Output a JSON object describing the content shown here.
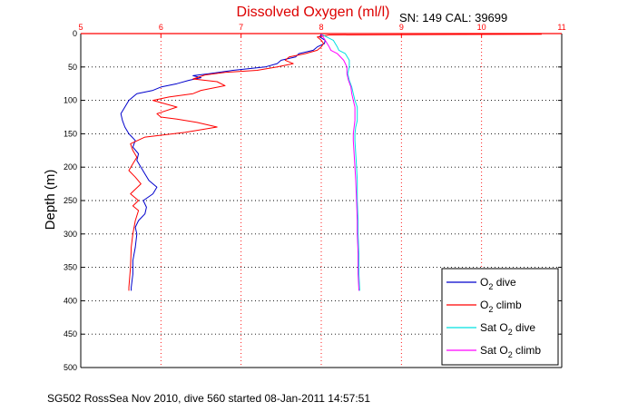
{
  "chart_data": {
    "type": "line",
    "title": "Dissolved Oxygen (ml/l)",
    "annotation": "SN: 149   CAL: 39699",
    "caption": "SG502 RossSea Nov 2010, dive 560 started 08-Jan-2011 14:57:51",
    "ylabel": "Depth (m)",
    "xlim": [
      5,
      11
    ],
    "ylim": [
      0,
      500
    ],
    "y_reversed": true,
    "x_axis_position": "top",
    "xticks": [
      "5",
      "6",
      "7",
      "8",
      "9",
      "10",
      "11"
    ],
    "yticks": [
      "0",
      "50",
      "100",
      "150",
      "200",
      "250",
      "300",
      "350",
      "400",
      "450",
      "500"
    ],
    "grid": true,
    "legend_position": "bottom-right",
    "colors": {
      "title": "#dd0000",
      "axis_top": "#ff0000",
      "grid": "#000000"
    },
    "series": [
      {
        "name": "O2 dive",
        "legend_base": "O",
        "legend_sub": "2",
        "legend_suffix": " dive",
        "color": "#0000cc",
        "points": [
          [
            8.0,
            1
          ],
          [
            7.98,
            5
          ],
          [
            8.05,
            10
          ],
          [
            8.04,
            15
          ],
          [
            7.95,
            20
          ],
          [
            7.9,
            25
          ],
          [
            7.72,
            30
          ],
          [
            7.68,
            35
          ],
          [
            7.5,
            40
          ],
          [
            7.45,
            45
          ],
          [
            7.3,
            50
          ],
          [
            6.9,
            55
          ],
          [
            6.6,
            60
          ],
          [
            6.4,
            63
          ],
          [
            6.5,
            66
          ],
          [
            6.35,
            70
          ],
          [
            6.2,
            75
          ],
          [
            6.0,
            80
          ],
          [
            5.9,
            85
          ],
          [
            5.7,
            90
          ],
          [
            5.65,
            95
          ],
          [
            5.6,
            100
          ],
          [
            5.55,
            110
          ],
          [
            5.5,
            120
          ],
          [
            5.52,
            130
          ],
          [
            5.55,
            140
          ],
          [
            5.6,
            150
          ],
          [
            5.68,
            160
          ],
          [
            5.65,
            170
          ],
          [
            5.72,
            180
          ],
          [
            5.7,
            190
          ],
          [
            5.75,
            200
          ],
          [
            5.8,
            210
          ],
          [
            5.85,
            220
          ],
          [
            5.95,
            230
          ],
          [
            5.9,
            240
          ],
          [
            5.78,
            250
          ],
          [
            5.82,
            260
          ],
          [
            5.8,
            270
          ],
          [
            5.72,
            280
          ],
          [
            5.68,
            290
          ],
          [
            5.7,
            300
          ],
          [
            5.68,
            320
          ],
          [
            5.65,
            340
          ],
          [
            5.65,
            360
          ],
          [
            5.63,
            380
          ],
          [
            5.63,
            385
          ]
        ]
      },
      {
        "name": "O2 climb",
        "legend_base": "O",
        "legend_sub": "2",
        "legend_suffix": " climb",
        "color": "#ff0000",
        "points": [
          [
            10.75,
            1
          ],
          [
            8.1,
            2
          ],
          [
            7.95,
            5
          ],
          [
            8.0,
            10
          ],
          [
            8.03,
            15
          ],
          [
            8.0,
            20
          ],
          [
            7.95,
            25
          ],
          [
            7.8,
            30
          ],
          [
            7.6,
            35
          ],
          [
            7.55,
            40
          ],
          [
            7.65,
            45
          ],
          [
            7.45,
            50
          ],
          [
            7.2,
            55
          ],
          [
            6.8,
            58
          ],
          [
            6.55,
            62
          ],
          [
            6.4,
            68
          ],
          [
            6.7,
            72
          ],
          [
            6.8,
            78
          ],
          [
            6.5,
            85
          ],
          [
            6.4,
            90
          ],
          [
            6.1,
            95
          ],
          [
            5.9,
            100
          ],
          [
            6.2,
            110
          ],
          [
            5.95,
            120
          ],
          [
            6.0,
            125
          ],
          [
            6.2,
            128
          ],
          [
            6.45,
            133
          ],
          [
            6.7,
            140
          ],
          [
            6.3,
            148
          ],
          [
            5.8,
            155
          ],
          [
            5.62,
            165
          ],
          [
            5.65,
            175
          ],
          [
            5.7,
            185
          ],
          [
            5.65,
            195
          ],
          [
            5.6,
            205
          ],
          [
            5.68,
            215
          ],
          [
            5.75,
            225
          ],
          [
            5.62,
            240
          ],
          [
            5.72,
            250
          ],
          [
            5.65,
            258
          ],
          [
            5.72,
            265
          ],
          [
            5.68,
            280
          ],
          [
            5.65,
            300
          ],
          [
            5.63,
            320
          ],
          [
            5.62,
            350
          ],
          [
            5.6,
            380
          ],
          [
            5.6,
            385
          ]
        ]
      },
      {
        "name": "Sat O2 dive",
        "legend_base": "Sat O",
        "legend_sub": "2",
        "legend_suffix": " dive",
        "color": "#00e0e0",
        "points": [
          [
            8.0,
            1
          ],
          [
            8.15,
            10
          ],
          [
            8.2,
            20
          ],
          [
            8.22,
            25
          ],
          [
            8.3,
            30
          ],
          [
            8.35,
            40
          ],
          [
            8.35,
            50
          ],
          [
            8.33,
            60
          ],
          [
            8.35,
            70
          ],
          [
            8.38,
            80
          ],
          [
            8.4,
            90
          ],
          [
            8.42,
            100
          ],
          [
            8.45,
            110
          ],
          [
            8.45,
            120
          ],
          [
            8.45,
            130
          ],
          [
            8.43,
            140
          ],
          [
            8.42,
            150
          ],
          [
            8.42,
            160
          ],
          [
            8.43,
            180
          ],
          [
            8.44,
            200
          ],
          [
            8.45,
            220
          ],
          [
            8.45,
            250
          ],
          [
            8.46,
            280
          ],
          [
            8.46,
            300
          ],
          [
            8.47,
            330
          ],
          [
            8.47,
            360
          ],
          [
            8.48,
            385
          ]
        ]
      },
      {
        "name": "Sat O2 climb",
        "legend_base": "Sat O",
        "legend_sub": "2",
        "legend_suffix": " climb",
        "color": "#ff00ff",
        "points": [
          [
            8.0,
            1
          ],
          [
            8.05,
            10
          ],
          [
            8.1,
            20
          ],
          [
            8.12,
            25
          ],
          [
            8.2,
            30
          ],
          [
            8.28,
            40
          ],
          [
            8.32,
            50
          ],
          [
            8.32,
            60
          ],
          [
            8.34,
            70
          ],
          [
            8.37,
            80
          ],
          [
            8.38,
            90
          ],
          [
            8.4,
            100
          ],
          [
            8.42,
            110
          ],
          [
            8.42,
            120
          ],
          [
            8.42,
            130
          ],
          [
            8.41,
            140
          ],
          [
            8.4,
            150
          ],
          [
            8.4,
            160
          ],
          [
            8.41,
            180
          ],
          [
            8.42,
            200
          ],
          [
            8.43,
            220
          ],
          [
            8.44,
            250
          ],
          [
            8.45,
            280
          ],
          [
            8.45,
            300
          ],
          [
            8.46,
            330
          ],
          [
            8.46,
            360
          ],
          [
            8.47,
            385
          ]
        ]
      }
    ]
  }
}
